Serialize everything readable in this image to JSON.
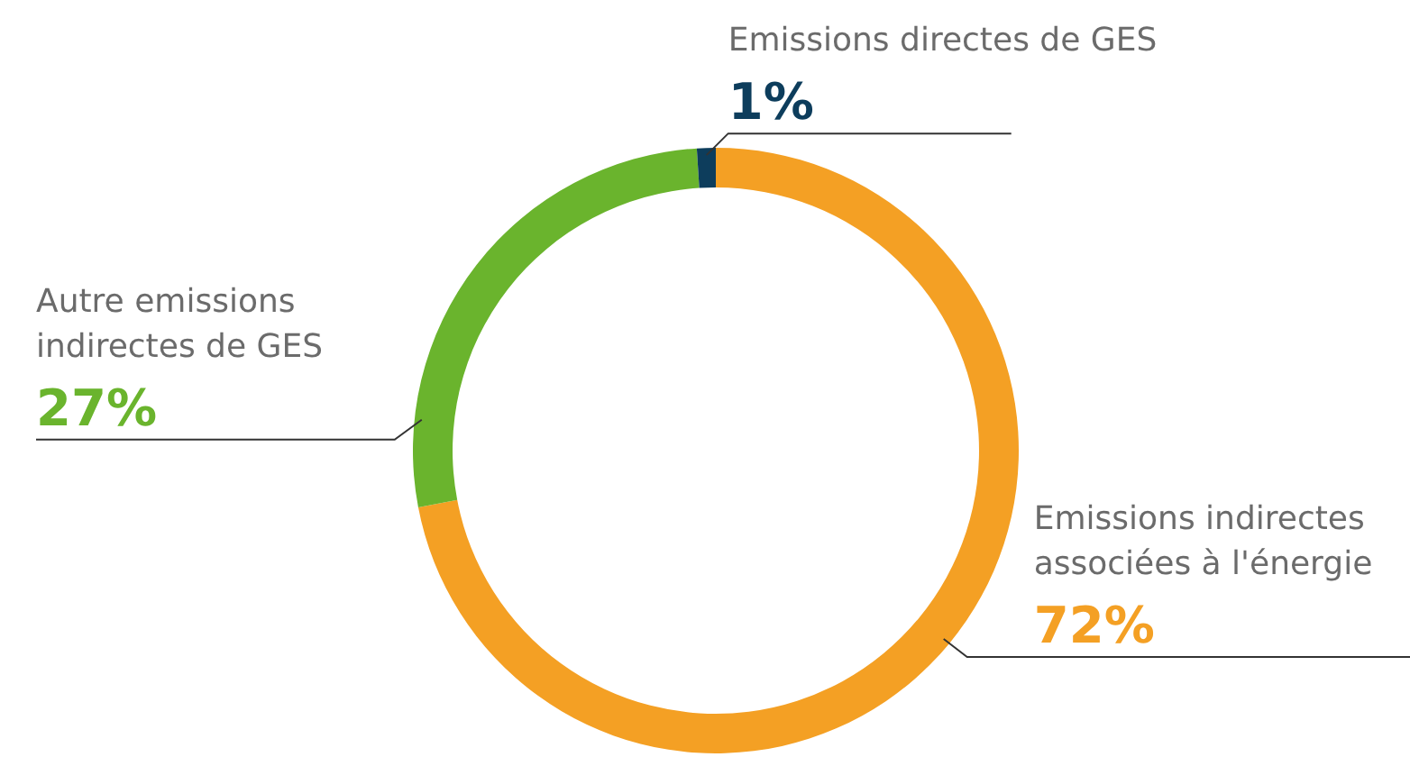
{
  "chart_data": {
    "type": "donut",
    "categories": [
      "Emissions indirectes associées à l'énergie",
      "Autre emissions indirectes de GES",
      "Emissions directes de GES"
    ],
    "values": [
      72,
      27,
      1
    ],
    "value_labels": [
      "72%",
      "27%",
      "1%"
    ],
    "colors": [
      "#f4a024",
      "#6ab42d",
      "#0d3d5c"
    ]
  }
}
